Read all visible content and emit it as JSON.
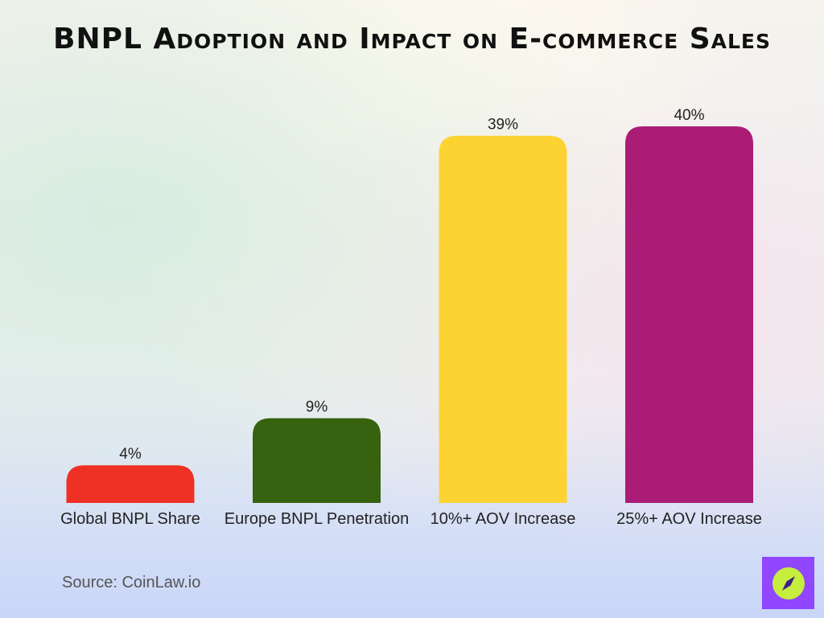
{
  "title": "BNPL Adoption and Impact on E-commerce Sales",
  "source": "Source: CoinLaw.io",
  "logo_icon": "compass-icon",
  "chart_data": {
    "type": "bar",
    "title": "BNPL Adoption and Impact on E-commerce Sales",
    "xlabel": "",
    "ylabel": "",
    "ylim": [
      0,
      40
    ],
    "grid": false,
    "categories": [
      "Global BNPL Share",
      "Europe BNPL Penetration",
      "10%+ AOV Increase",
      "25%+ AOV Increase"
    ],
    "values": [
      4,
      9,
      39,
      40
    ],
    "data_labels": [
      "4%",
      "9%",
      "39%",
      "40%"
    ],
    "colors": [
      "#ee3124",
      "#37620f",
      "#fdd334",
      "#ab1c77"
    ]
  }
}
